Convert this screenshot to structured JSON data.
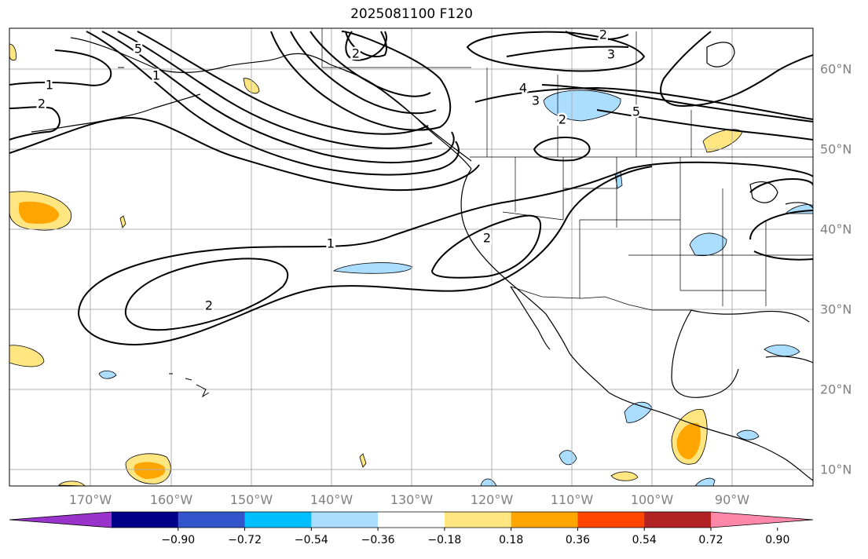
{
  "title": "2025081100 F120",
  "map": {
    "lon_labels": [
      "170°W",
      "160°W",
      "150°W",
      "140°W",
      "130°W",
      "120°W",
      "110°W",
      "100°W",
      "90°W"
    ],
    "lat_labels": [
      "60°N",
      "50°N",
      "40°N",
      "30°N",
      "20°N",
      "10°N"
    ],
    "contour_labels": [
      "1",
      "2",
      "2",
      "1",
      "2",
      "2",
      "3",
      "4",
      "3",
      "2",
      "5",
      "1",
      "2",
      "5"
    ]
  },
  "colorbar": {
    "colors": [
      "#9933cc",
      "#000088",
      "#3355cc",
      "#00bfff",
      "#aaddff",
      "#ffffff",
      "#ffe680",
      "#ffa500",
      "#ff4500",
      "#b22222",
      "#ff88aa"
    ],
    "tick_labels": [
      "−0.90",
      "−0.72",
      "−0.54",
      "−0.36",
      "−0.18",
      "0.18",
      "0.36",
      "0.54",
      "0.72",
      "0.90"
    ]
  }
}
